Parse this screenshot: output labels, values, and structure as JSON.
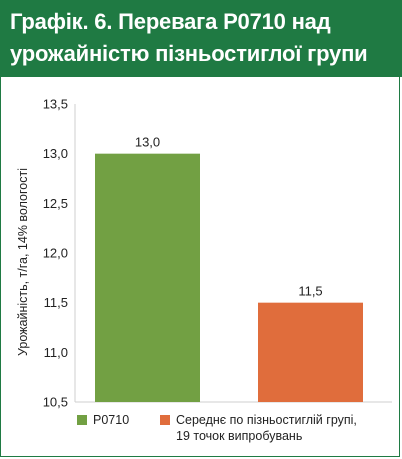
{
  "title": "Графік. 6. Перевага P0710 над урожайністю пізньостиглої групи",
  "colors": {
    "header": "#1f7a43",
    "series1": "#72a043",
    "series2": "#e06d3c"
  },
  "chart_data": {
    "type": "bar",
    "ylabel": "Урожайність, т/га, 14% вологості",
    "xlabel": "",
    "ylim": [
      10.5,
      13.5
    ],
    "yticks": [
      "13,5",
      "13,0",
      "12,5",
      "12,0",
      "11,5",
      "11,0",
      "10,5"
    ],
    "ytick_values": [
      13.5,
      13.0,
      12.5,
      12.0,
      11.5,
      11.0,
      10.5
    ],
    "grid": false,
    "legend_position": "bottom",
    "series": [
      {
        "name": "P0710",
        "value": 13.0,
        "label": "13,0",
        "color": "#72a043"
      },
      {
        "name": "Середнє по пізньостиглій групі,\n19 точок випробувань",
        "name_line1": "Середнє по пізньостиглій групі,",
        "name_line2": "19 точок випробувань",
        "value": 11.5,
        "label": "11,5",
        "color": "#e06d3c"
      }
    ]
  }
}
